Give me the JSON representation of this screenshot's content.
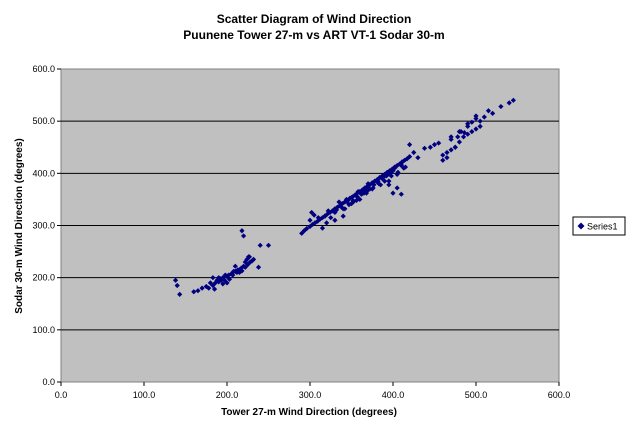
{
  "chart_data": {
    "type": "scatter",
    "title": "Scatter Diagram of Wind Direction",
    "subtitle": "Puunene Tower 27-m vs ART VT-1 Sodar 30-m",
    "xlabel": "Tower 27-m Wind Direction (degrees)",
    "ylabel": "Sodar 30-m Wind Direction (degrees)",
    "xlim": [
      0,
      600
    ],
    "ylim": [
      0,
      600
    ],
    "xticks": [
      "0.0",
      "100.0",
      "200.0",
      "300.0",
      "400.0",
      "500.0",
      "600.0"
    ],
    "yticks": [
      "0.0",
      "100.0",
      "200.0",
      "300.0",
      "400.0",
      "500.0",
      "600.0"
    ],
    "grid": "horizontal",
    "legend_position": "right",
    "colors": {
      "plot_background": "#c0c0c0",
      "marker": "#000080",
      "gridline": "#000000"
    },
    "series": [
      {
        "name": "Series1",
        "marker": "diamond",
        "x": [
          138,
          140,
          143,
          160,
          165,
          170,
          175,
          178,
          180,
          183,
          186,
          188,
          190,
          192,
          195,
          197,
          200,
          202,
          205,
          207,
          210,
          212,
          215,
          217,
          220,
          222,
          225,
          228,
          230,
          232,
          185,
          190,
          198,
          203,
          208,
          213,
          218,
          222,
          183,
          193,
          195,
          200,
          210,
          215,
          227,
          238,
          240,
          250,
          218,
          220,
          224,
          226,
          290,
          293,
          296,
          300,
          303,
          306,
          309,
          312,
          315,
          318,
          321,
          324,
          327,
          330,
          333,
          336,
          339,
          342,
          345,
          348,
          351,
          354,
          357,
          360,
          363,
          366,
          369,
          372,
          375,
          378,
          381,
          384,
          387,
          390,
          393,
          396,
          399,
          402,
          405,
          408,
          411,
          414,
          417,
          420,
          305,
          310,
          318,
          322,
          330,
          335,
          340,
          344,
          348,
          352,
          356,
          358,
          362,
          366,
          368,
          372,
          376,
          380,
          383,
          386,
          390,
          394,
          398,
          402,
          406,
          410,
          413,
          325,
          332,
          338,
          345,
          350,
          355,
          360,
          365,
          370,
          375,
          380,
          385,
          390,
          395,
          400,
          405,
          410,
          415,
          342,
          347,
          352,
          357,
          362,
          367,
          372,
          377,
          382,
          387,
          392,
          397,
          300,
          302,
          315,
          320,
          330,
          340,
          370,
          395,
          400,
          405,
          410,
          420,
          425,
          430,
          438,
          445,
          450,
          455,
          460,
          465,
          470,
          475,
          478,
          482,
          486,
          490,
          495,
          500,
          505,
          510,
          515,
          520,
          530,
          540,
          545,
          460,
          465,
          470,
          475,
          480,
          485,
          490,
          495,
          500,
          505,
          470,
          480,
          490,
          500
        ],
        "y": [
          195,
          185,
          168,
          173,
          175,
          180,
          183,
          180,
          190,
          185,
          190,
          195,
          192,
          198,
          200,
          195,
          202,
          205,
          207,
          205,
          212,
          210,
          215,
          218,
          222,
          220,
          225,
          230,
          232,
          235,
          178,
          200,
          205,
          197,
          212,
          215,
          213,
          230,
          200,
          195,
          188,
          190,
          222,
          210,
          240,
          220,
          262,
          262,
          290,
          280,
          235,
          240,
          285,
          290,
          294,
          298,
          302,
          305,
          308,
          312,
          315,
          318,
          322,
          325,
          328,
          332,
          335,
          338,
          342,
          345,
          348,
          352,
          355,
          358,
          362,
          365,
          368,
          372,
          375,
          378,
          382,
          385,
          388,
          392,
          395,
          398,
          402,
          405,
          408,
          412,
          415,
          418,
          422,
          425,
          428,
          432,
          320,
          315,
          318,
          328,
          325,
          345,
          332,
          350,
          352,
          345,
          348,
          365,
          360,
          370,
          362,
          378,
          372,
          385,
          380,
          392,
          385,
          398,
          395,
          410,
          402,
          415,
          410,
          315,
          330,
          335,
          345,
          342,
          358,
          350,
          362,
          368,
          370,
          385,
          378,
          395,
          385,
          405,
          398,
          418,
          412,
          332,
          340,
          348,
          355,
          360,
          365,
          370,
          378,
          385,
          390,
          395,
          400,
          310,
          325,
          295,
          305,
          310,
          318,
          380,
          378,
          362,
          372,
          360,
          455,
          440,
          430,
          448,
          450,
          455,
          458,
          435,
          430,
          465,
          450,
          470,
          480,
          478,
          490,
          498,
          505,
          500,
          508,
          520,
          515,
          528,
          535,
          540,
          425,
          440,
          445,
          450,
          460,
          470,
          475,
          480,
          485,
          490,
          470,
          480,
          495,
          510
        ]
      }
    ]
  }
}
